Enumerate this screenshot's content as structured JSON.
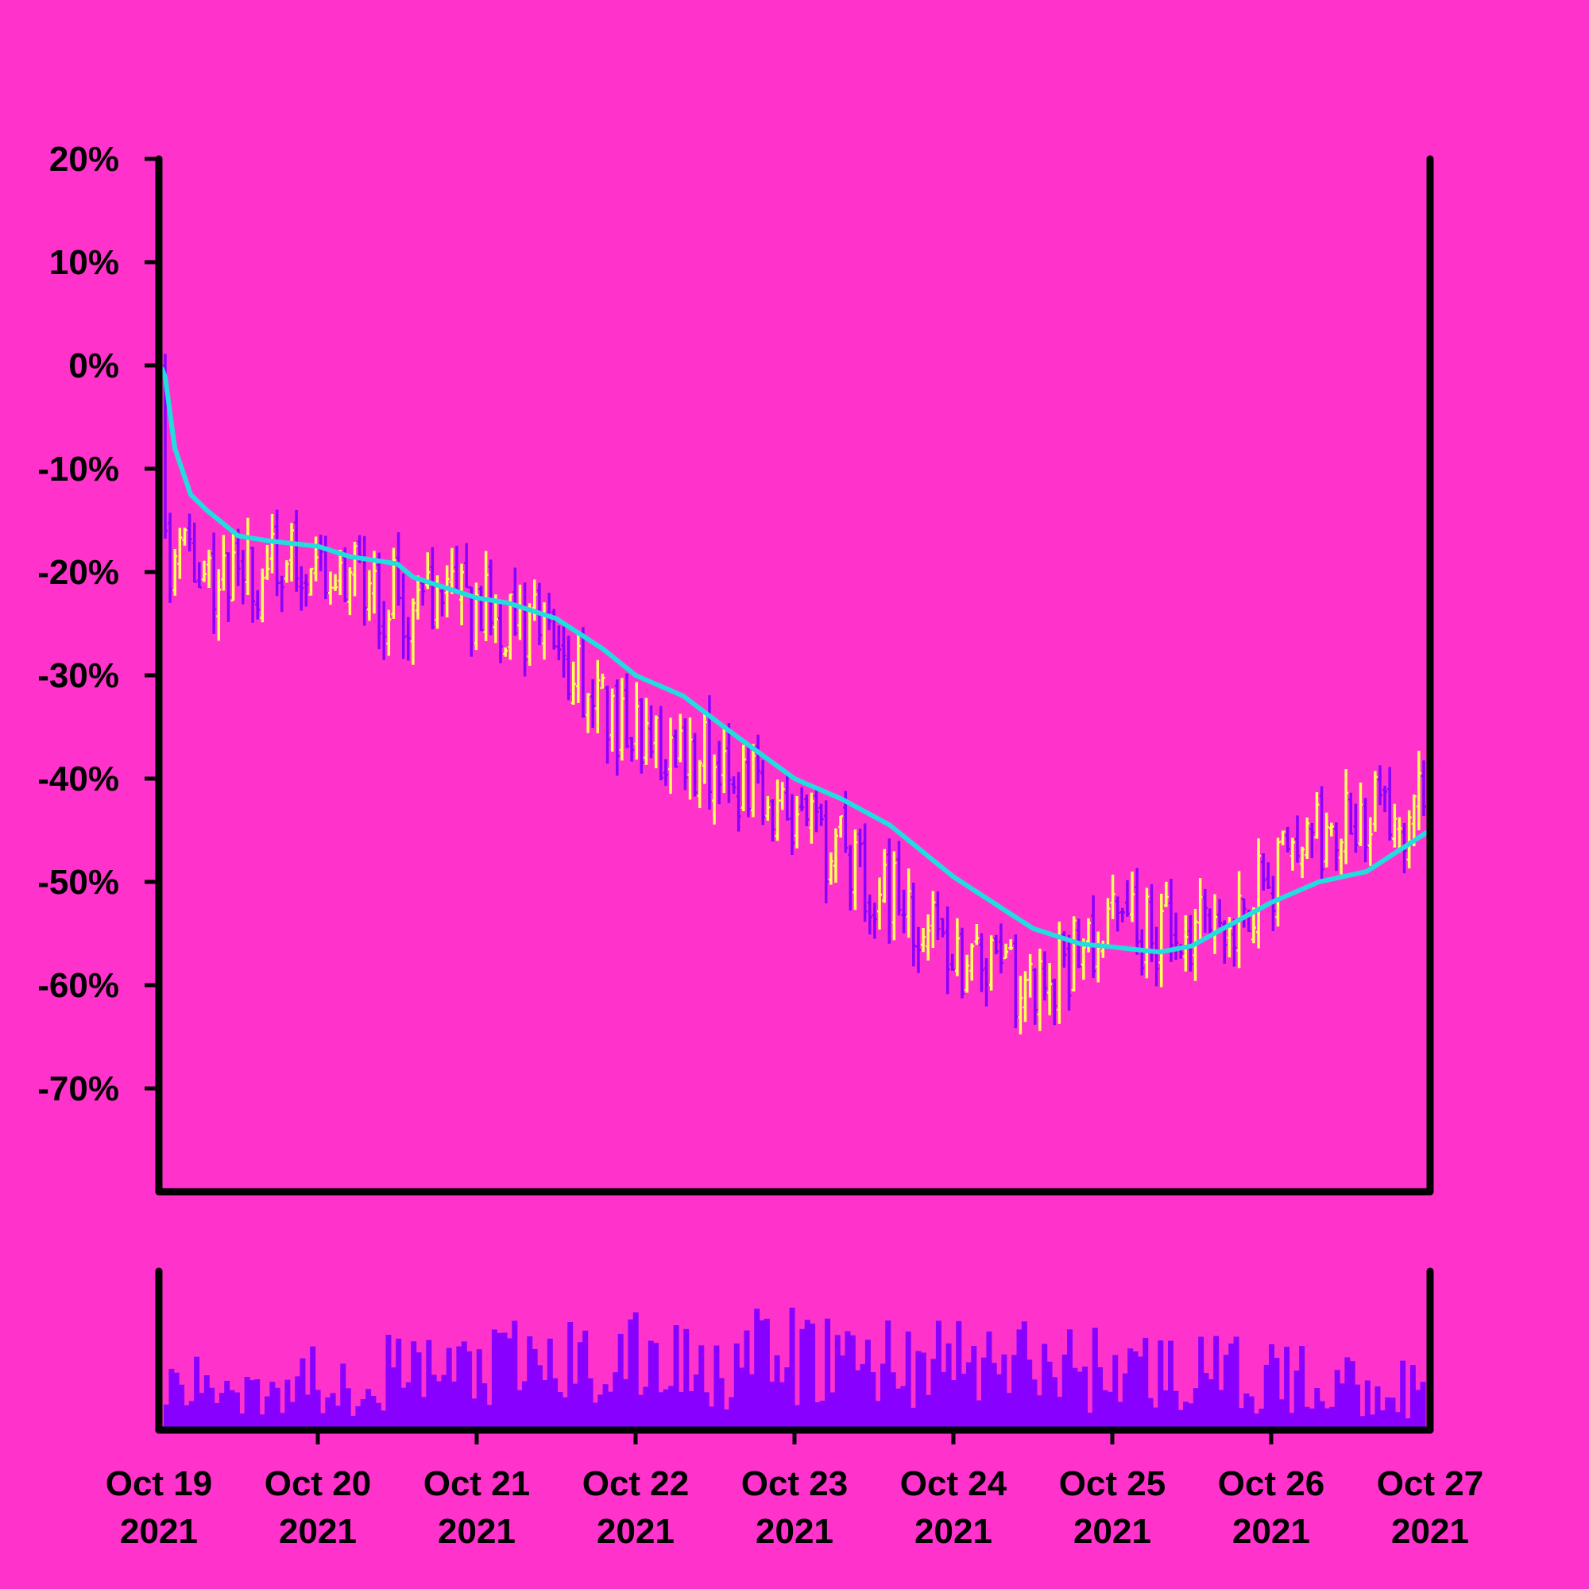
{
  "chart_data": {
    "type": "ohlc",
    "title": "",
    "xlabel": "",
    "ylabel": "",
    "background_color": "#ff33cc",
    "up_color": "#ffff55",
    "down_color": "#8800ff",
    "ma_color": "#22dddd",
    "volume_color": "#8800ff",
    "y_unit": "percent change",
    "ylim": [
      -80,
      20
    ],
    "y_ticks": [
      20,
      10,
      0,
      -10,
      -20,
      -30,
      -40,
      -50,
      -60,
      -70
    ],
    "y_tick_labels": [
      "20%",
      "10%",
      "0%",
      "-10%",
      "-20%",
      "-30%",
      "-40%",
      "-50%",
      "-60%",
      "-70%"
    ],
    "x_range": [
      "2021-10-19",
      "2021-10-27"
    ],
    "x_ticks": [
      "2021-10-19",
      "2021-10-20",
      "2021-10-21",
      "2021-10-22",
      "2021-10-23",
      "2021-10-24",
      "2021-10-25",
      "2021-10-26",
      "2021-10-27"
    ],
    "x_tick_labels": [
      {
        "month_day": "Oct 19",
        "year": "2021"
      },
      {
        "month_day": "Oct 20",
        "year": "2021"
      },
      {
        "month_day": "Oct 21",
        "year": "2021"
      },
      {
        "month_day": "Oct 22",
        "year": "2021"
      },
      {
        "month_day": "Oct 23",
        "year": "2021"
      },
      {
        "month_day": "Oct 24",
        "year": "2021"
      },
      {
        "month_day": "Oct 25",
        "year": "2021"
      },
      {
        "month_day": "Oct 26",
        "year": "2021"
      },
      {
        "month_day": "Oct 27",
        "year": "2021"
      }
    ],
    "close_anchor_days": [
      0,
      0.06,
      0.25,
      0.5,
      1.0,
      1.5,
      2.0,
      2.5,
      3.0,
      3.5,
      4.0,
      4.5,
      5.0,
      5.5,
      6.0,
      6.5,
      7.0,
      7.5,
      8.0
    ],
    "close_anchor_values": [
      0,
      -18,
      -19,
      -21,
      -19,
      -23,
      -23,
      -27,
      -36,
      -38,
      -44,
      -50,
      -57,
      -60,
      -54,
      -56,
      -50,
      -43,
      -43
    ],
    "ma_anchor_days": [
      0,
      0.03,
      0.1,
      0.2,
      0.3,
      0.5,
      0.7,
      1.0,
      1.2,
      1.5,
      1.6,
      1.8,
      2.0,
      2.2,
      2.5,
      2.8,
      3.0,
      3.3,
      3.6,
      4.0,
      4.3,
      4.6,
      5.0,
      5.3,
      5.5,
      5.8,
      6.0,
      6.3,
      6.5,
      6.7,
      7.0,
      7.3,
      7.6,
      7.8,
      8.0
    ],
    "ma_anchor_values": [
      -1,
      0,
      -8,
      -12.5,
      -14,
      -16.5,
      -17,
      -17.5,
      -18.5,
      -19.2,
      -20.5,
      -21.5,
      -22.5,
      -23,
      -24.5,
      -27.5,
      -30,
      -32,
      -35.5,
      -40,
      -42,
      -44.5,
      -49.5,
      -52.5,
      -54.5,
      -56,
      -56.3,
      -56.8,
      -56.2,
      -54.5,
      -52,
      -50,
      -49,
      -47,
      -45
    ],
    "volume_note": "volume bars shown without axis scale; relative heights 0-1",
    "volume_seed": 11
  }
}
